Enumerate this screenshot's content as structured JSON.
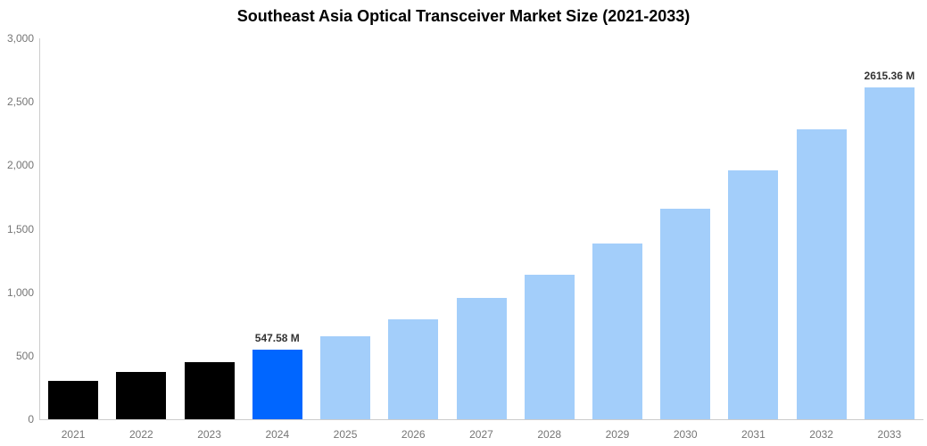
{
  "chart_data": {
    "type": "bar",
    "title": "Southeast Asia Optical Transceiver Market Size (2021-2033)",
    "categories": [
      "2021",
      "2022",
      "2023",
      "2024",
      "2025",
      "2026",
      "2027",
      "2028",
      "2029",
      "2030",
      "2031",
      "2032",
      "2033"
    ],
    "values": [
      305,
      370,
      450,
      547.58,
      655,
      790,
      955,
      1140,
      1385,
      1655,
      1960,
      2280,
      2615.36
    ],
    "unit": "M",
    "xlabel": "",
    "ylabel": "",
    "ylim": [
      0,
      3000
    ],
    "grid": false,
    "legend_position": "none",
    "y_ticks": [
      {
        "value": 0,
        "label": "0"
      },
      {
        "value": 500,
        "label": "500"
      },
      {
        "value": 1000,
        "label": "1,000"
      },
      {
        "value": 1500,
        "label": "1,500"
      },
      {
        "value": 2000,
        "label": "2,000"
      },
      {
        "value": 2500,
        "label": "2,500"
      },
      {
        "value": 3000,
        "label": "3,000"
      }
    ],
    "bar_colors": [
      "#000000",
      "#000000",
      "#000000",
      "#0066ff",
      "#a3cefa",
      "#a3cefa",
      "#a3cefa",
      "#a3cefa",
      "#a3cefa",
      "#a3cefa",
      "#a3cefa",
      "#a3cefa",
      "#a3cefa"
    ],
    "annotations": [
      {
        "category": "2024",
        "text": "547.58 M"
      },
      {
        "category": "2033",
        "text": "2615.36 M"
      }
    ],
    "colors": {
      "historical_bar": "#000000",
      "highlight_bar": "#0066ff",
      "forecast_bar": "#a3cefa",
      "axis_line": "#cccccc",
      "tick_text": "#757575",
      "annotation_text": "#333333",
      "title_text": "#000000",
      "background": "#ffffff"
    }
  }
}
